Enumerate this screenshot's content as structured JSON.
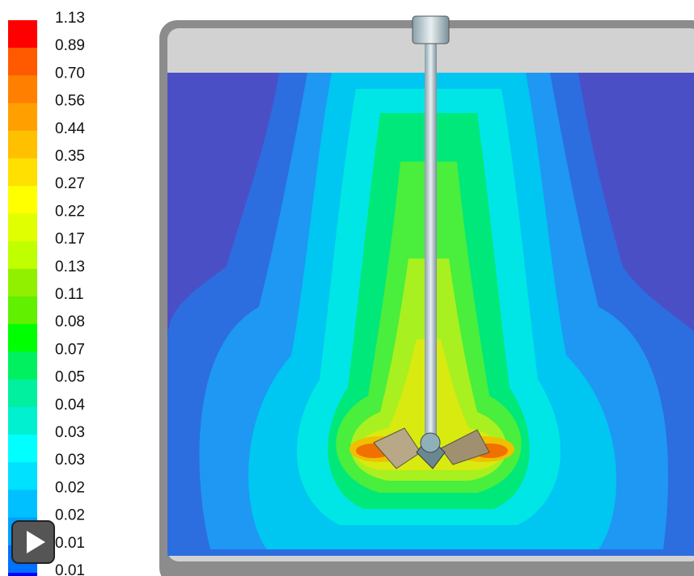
{
  "legend": {
    "labels": [
      "1.13",
      "0.89",
      "0.70",
      "0.56",
      "0.44",
      "0.35",
      "0.27",
      "0.22",
      "0.17",
      "0.13",
      "0.11",
      "0.08",
      "0.07",
      "0.05",
      "0.04",
      "0.03",
      "0.03",
      "0.02",
      "0.02",
      "0.01",
      "0.01"
    ],
    "colors": [
      "#ff0000",
      "#ff5a00",
      "#ff8000",
      "#ffa000",
      "#ffc000",
      "#ffe000",
      "#ffff00",
      "#e0ff00",
      "#c0ff00",
      "#90f000",
      "#60f000",
      "#00ff00",
      "#00f060",
      "#00f0a0",
      "#00f0d0",
      "#00ffff",
      "#00e0ff",
      "#00c0ff",
      "#00a0ff",
      "#0070ff",
      "#0000ff"
    ]
  }
}
